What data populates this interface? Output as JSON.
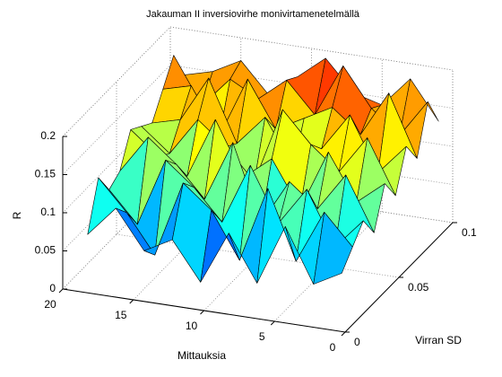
{
  "chart_data": {
    "type": "surface",
    "title": "Jakauman II inversiovirhe monivirtamenetelmällä",
    "xlabel": "Mittauksia",
    "ylabel": "Virran SD",
    "zlabel": "R",
    "x": [
      1,
      3,
      5,
      7,
      9,
      11,
      13,
      15,
      17,
      19
    ],
    "y": [
      0.01,
      0.02,
      0.03,
      0.04,
      0.05,
      0.06,
      0.07,
      0.08,
      0.09,
      0.1
    ],
    "z": [
      [
        0.06,
        0.04,
        0.11,
        0.03,
        0.09,
        0.02,
        0.07,
        0.05,
        0.1,
        0.06
      ],
      [
        0.08,
        0.12,
        0.05,
        0.14,
        0.04,
        0.1,
        0.13,
        0.03,
        0.08,
        0.12
      ],
      [
        0.1,
        0.06,
        0.13,
        0.08,
        0.15,
        0.07,
        0.11,
        0.14,
        0.05,
        0.09
      ],
      [
        0.07,
        0.14,
        0.09,
        0.12,
        0.06,
        0.16,
        0.08,
        0.12,
        0.15,
        0.1
      ],
      [
        0.12,
        0.09,
        0.15,
        0.07,
        0.13,
        0.1,
        0.17,
        0.09,
        0.11,
        0.14
      ],
      [
        0.09,
        0.16,
        0.11,
        0.14,
        0.18,
        0.08,
        0.12,
        0.15,
        0.1,
        0.13
      ],
      [
        0.14,
        0.1,
        0.17,
        0.12,
        0.09,
        0.15,
        0.11,
        0.19,
        0.13,
        0.12
      ],
      [
        0.11,
        0.19,
        0.13,
        0.16,
        0.14,
        0.12,
        0.18,
        0.1,
        0.16,
        0.15
      ],
      [
        0.17,
        0.12,
        0.15,
        0.2,
        0.13,
        0.17,
        0.14,
        0.16,
        0.12,
        0.18
      ],
      [
        0.13,
        0.18,
        0.14,
        0.15,
        0.19,
        0.16,
        0.13,
        0.17,
        0.15,
        0.14
      ]
    ],
    "xlim": [
      0,
      20
    ],
    "ylim": [
      0,
      0.1
    ],
    "zlim": [
      0,
      0.2
    ],
    "xticks": [
      0,
      5,
      10,
      15,
      20
    ],
    "yticks": [
      0,
      0.05,
      0.1
    ],
    "zticks": [
      0,
      0.05,
      0.1,
      0.15,
      0.2
    ],
    "grid": true,
    "colormap": "jet"
  }
}
